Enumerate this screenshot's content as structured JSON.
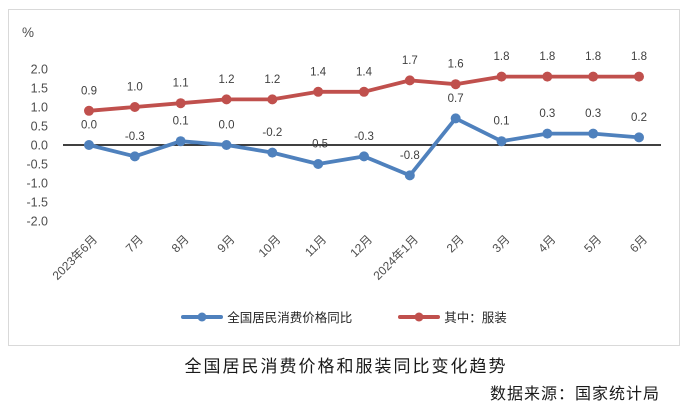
{
  "chart_data": {
    "type": "line",
    "unit_label": "%",
    "categories": [
      "2023年6月",
      "7月",
      "8月",
      "9月",
      "10月",
      "11月",
      "12月",
      "2024年1月",
      "2月",
      "3月",
      "4月",
      "5月",
      "6月"
    ],
    "series": [
      {
        "name": "全国居民消费价格同比",
        "color": "#4f81bd",
        "values": [
          0.0,
          -0.3,
          0.1,
          0.0,
          -0.2,
          -0.5,
          -0.3,
          -0.8,
          0.7,
          0.1,
          0.3,
          0.3,
          0.2
        ]
      },
      {
        "name": "其中：服装",
        "color": "#c0504d",
        "values": [
          0.9,
          1.0,
          1.1,
          1.2,
          1.2,
          1.4,
          1.4,
          1.7,
          1.6,
          1.8,
          1.8,
          1.8,
          1.8
        ]
      }
    ],
    "y_ticks": [
      "2.0",
      "1.5",
      "1.0",
      "0.5",
      "0.0",
      "-0.5",
      "-1.0",
      "-1.5",
      "-2.0"
    ],
    "ylim": [
      -2.0,
      2.0
    ],
    "grid": false,
    "legend_position": "bottom",
    "data_labels": true,
    "label_color": "#404040",
    "axis_text_color": "#4d4d4d",
    "axis_line_color": "#000000",
    "frame_border_color": "#d9d9d9",
    "title": "全国居民消费价格和服装同比变化趋势",
    "source": "数据来源：国家统计局"
  }
}
